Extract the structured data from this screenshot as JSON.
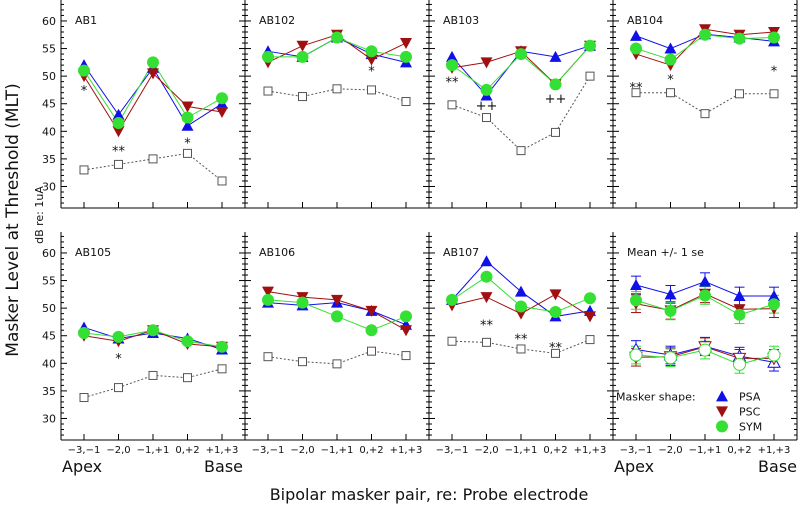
{
  "chart_data": {
    "type": "line",
    "ylabel": "Masker Level at Threshold (MLT)",
    "ylabel_unit": "dB re: 1uA",
    "xlabel": "Bipolar masker pair, re: Probe electrode",
    "x_ticks": [
      "−3,−1",
      "−2,0",
      "−1,+1",
      "0,+2",
      "+1,+3"
    ],
    "x_end_labels": {
      "left": "Apex",
      "right": "Base"
    },
    "ylim": [
      26.1,
      63.8
    ],
    "y_ticks": [
      30,
      35,
      40,
      45,
      50,
      55,
      60
    ],
    "colors": {
      "PSA": "#1010e8",
      "PSC": "#a01010",
      "SYM": "#33e033",
      "probe": "#555555"
    },
    "legend": {
      "title": "Masker shape:",
      "entries": [
        "PSA",
        "PSC",
        "SYM"
      ],
      "placement": "bottom-right panel, lower area"
    },
    "panels": [
      {
        "title": "AB1",
        "series": {
          "PSA": [
            52,
            43,
            51.5,
            41,
            45
          ],
          "PSC": [
            50,
            40,
            50.5,
            44.5,
            43.5
          ],
          "SYM": [
            51,
            41.5,
            52.5,
            42.5,
            46
          ],
          "probe": [
            33,
            34,
            35,
            36,
            31
          ]
        },
        "annotations": [
          {
            "pos": 0,
            "y": 47.5,
            "text": "*"
          },
          {
            "pos": 1,
            "y": 36.5,
            "text": "**"
          },
          {
            "pos": 3,
            "y": 38,
            "text": "*"
          }
        ]
      },
      {
        "title": "AB102",
        "series": {
          "PSA": [
            54.5,
            53.5,
            57,
            54,
            52.5
          ],
          "PSC": [
            52.5,
            55.5,
            57.5,
            53,
            56
          ],
          "SYM": [
            53.5,
            53.5,
            57,
            54.5,
            53.5
          ],
          "probe": [
            47.3,
            46.3,
            47.7,
            47.5,
            45.4
          ]
        },
        "annotations": [
          {
            "pos": 3,
            "y": 51,
            "text": "*"
          }
        ]
      },
      {
        "title": "AB103",
        "series": {
          "PSA": [
            53.5,
            46.5,
            54.5,
            53.5,
            55.5
          ],
          "PSC": [
            51.5,
            52.5,
            54.5,
            48.5,
            55.5
          ],
          "SYM": [
            52,
            47.5,
            54,
            48.5,
            55.5
          ],
          "probe": [
            44.8,
            42.5,
            36.5,
            39.8,
            50
          ]
        },
        "annotations": [
          {
            "pos": 0,
            "y": 49,
            "text": "**"
          },
          {
            "pos": 1,
            "y": 44.8,
            "text": "++"
          },
          {
            "pos": 3,
            "y": 46,
            "text": "++"
          }
        ]
      },
      {
        "title": "AB104",
        "series": {
          "PSA": [
            57.3,
            55,
            57.6,
            57,
            56.3
          ],
          "PSC": [
            54,
            52,
            58.5,
            57.5,
            58
          ],
          "SYM": [
            55,
            53,
            57.5,
            56.8,
            57
          ],
          "probe": [
            47,
            47,
            43.2,
            46.8,
            46.8
          ]
        },
        "annotations": [
          {
            "pos": 0,
            "y": 48,
            "text": "**"
          },
          {
            "pos": 1,
            "y": 49.5,
            "text": "*"
          },
          {
            "pos": 4,
            "y": 51,
            "text": "*"
          }
        ]
      },
      {
        "title": "AB105",
        "series": {
          "PSA": [
            46.5,
            44.5,
            45.5,
            44.5,
            42.5
          ],
          "PSC": [
            45,
            44,
            46,
            43.5,
            43
          ],
          "SYM": [
            45.5,
            44.8,
            46,
            44,
            43
          ],
          "probe": [
            33.8,
            35.6,
            37.8,
            37.4,
            39
          ]
        },
        "annotations": [
          {
            "pos": 1,
            "y": 41,
            "text": "*"
          }
        ]
      },
      {
        "title": "AB106",
        "series": {
          "PSA": [
            51,
            50.5,
            51,
            49.5,
            47
          ],
          "PSC": [
            53,
            52,
            51.5,
            49.5,
            46
          ],
          "SYM": [
            51.5,
            51,
            48.5,
            46,
            48.5
          ],
          "probe": [
            41.2,
            40.3,
            39.9,
            42.2,
            41.4
          ]
        },
        "annotations": []
      },
      {
        "title": "AB107",
        "series": {
          "PSA": [
            51.5,
            58.5,
            53,
            48.5,
            49.5
          ],
          "PSC": [
            50.5,
            52,
            49,
            52.5,
            48.5
          ],
          "SYM": [
            51.5,
            55.7,
            50.3,
            49.3,
            51.8
          ],
          "probe": [
            44,
            43.8,
            42.6,
            41.8,
            44.3
          ]
        },
        "annotations": [
          {
            "pos": 1,
            "y": 47,
            "text": "**"
          },
          {
            "pos": 2,
            "y": 44.5,
            "text": "**"
          },
          {
            "pos": 3,
            "y": 43,
            "text": "**"
          }
        ]
      },
      {
        "title": "Mean +/- 1 se",
        "mean": true,
        "series": {
          "PSA": [
            54.2,
            52.5,
            54.8,
            52.2,
            52.2
          ],
          "PSC": [
            50.8,
            49.6,
            52.6,
            49.8,
            49.9
          ],
          "SYM": [
            51.4,
            49.5,
            52.3,
            48.8,
            50.7
          ]
        },
        "open_series": {
          "PSA": [
            42.5,
            41.5,
            43.1,
            41.3,
            40.2
          ],
          "PSC": [
            41.1,
            41.2,
            43,
            40.9,
            40.9
          ],
          "SYM": [
            41.5,
            41,
            42.4,
            39.8,
            41.5
          ]
        },
        "se": 1.6,
        "annotations": []
      }
    ]
  }
}
